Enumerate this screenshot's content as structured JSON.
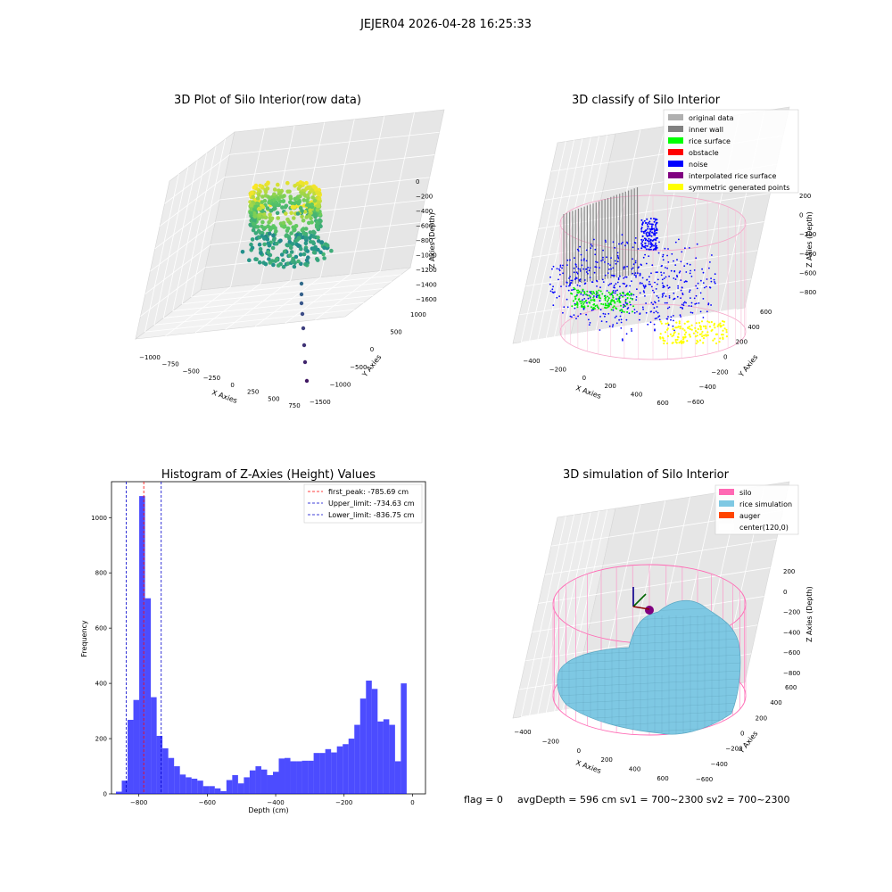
{
  "figure": {
    "title": "JEJER04 2026-04-28 16:25:33",
    "footer": {
      "flag": "flag = 0",
      "stats": "avgDepth = 596 cm  sv1 = 700~2300  sv2 = 700~2300"
    }
  },
  "chart_data": [
    {
      "id": "raw3d",
      "type": "scatter",
      "title": "3D Plot of Silo Interior(row data)",
      "xlabel": "X Axies",
      "ylabel": "Y Axies",
      "zlabel": "Z Axies (Depth)",
      "xticks": [
        "−1000",
        "−750",
        "−500",
        "−250",
        "0",
        "250",
        "500",
        "750"
      ],
      "yticks": [
        "−1500",
        "−1000",
        "−500",
        "0",
        "500",
        "1000"
      ],
      "zticks": [
        "0",
        "−200",
        "−400",
        "−600",
        "−800",
        "−1000",
        "−1200",
        "−1400",
        "−1600"
      ],
      "colormap": [
        "#440154",
        "#31688e",
        "#35b779",
        "#fde725"
      ]
    },
    {
      "id": "classify3d",
      "type": "scatter",
      "title": "3D classify of Silo Interior",
      "xlabel": "X Axies",
      "ylabel": "Y Axies",
      "zlabel": "Z Axies (Depth)",
      "xticks": [
        "−400",
        "−200",
        "0",
        "200",
        "400",
        "600"
      ],
      "yticks": [
        "−600",
        "−400",
        "−200",
        "0",
        "200",
        "400",
        "600"
      ],
      "zticks": [
        "200",
        "0",
        "−200",
        "−400",
        "−600",
        "−800"
      ],
      "legend": [
        {
          "label": "original data",
          "color": "#b0b0b0"
        },
        {
          "label": "inner wall",
          "color": "#808080"
        },
        {
          "label": "rice surface",
          "color": "#00ff00"
        },
        {
          "label": "obstacle",
          "color": "#ff0000"
        },
        {
          "label": "noise",
          "color": "#0000ff"
        },
        {
          "label": "interpolated rice surface",
          "color": "#800080"
        },
        {
          "label": "symmetric generated points",
          "color": "#ffff00"
        }
      ],
      "legend_position": "upper-right"
    },
    {
      "id": "hist",
      "type": "bar",
      "title": "Histogram of Z-Axies (Height) Values",
      "xlabel": "Depth (cm)",
      "ylabel": "Frequency",
      "xlim": [
        -880,
        38
      ],
      "ylim": [
        0,
        1130
      ],
      "xticks": [
        -800,
        -600,
        -400,
        -200,
        0
      ],
      "xtick_labels": [
        "−800",
        "−600",
        "−400",
        "−200",
        "0"
      ],
      "yticks": [
        0,
        200,
        400,
        600,
        800,
        1000
      ],
      "bin_width": 17,
      "bin_start": -867,
      "values": [
        8,
        48,
        268,
        340,
        1078,
        708,
        350,
        210,
        165,
        130,
        100,
        70,
        60,
        55,
        48,
        28,
        28,
        20,
        10,
        50,
        68,
        38,
        60,
        85,
        100,
        88,
        68,
        80,
        128,
        130,
        118,
        118,
        120,
        120,
        148,
        148,
        162,
        150,
        172,
        180,
        200,
        250,
        345,
        410,
        380,
        262,
        270,
        250,
        118,
        400
      ],
      "bar_color": "#0000ff",
      "bar_alpha": 0.7,
      "vlines": [
        {
          "label": "first_peak: -785.69 cm",
          "x": -785.69,
          "color": "#ff0000"
        },
        {
          "label": "Upper_limit: -734.63 cm",
          "x": -734.63,
          "color": "#0000cc"
        },
        {
          "label": "Lower_limit: -836.75 cm",
          "x": -836.75,
          "color": "#0000cc"
        }
      ],
      "legend_position": "upper-right"
    },
    {
      "id": "sim3d",
      "type": "area",
      "title": "3D simulation of Silo Interior",
      "xlabel": "X Axies",
      "ylabel": "Y Axies",
      "zlabel": "Z Axies (Depth)",
      "xticks": [
        "−400",
        "−200",
        "0",
        "200",
        "400",
        "600"
      ],
      "yticks": [
        "−600",
        "−400",
        "−200",
        "0",
        "200",
        "400",
        "600"
      ],
      "zticks": [
        "200",
        "0",
        "−200",
        "−400",
        "−600",
        "−800"
      ],
      "legend": [
        {
          "label": "silo",
          "color": "#ff69b4"
        },
        {
          "label": "rice simulation",
          "color": "#7ec8e3"
        },
        {
          "label": "auger",
          "color": "#ff4500"
        },
        {
          "label": "center(120,0)",
          "color": "#ffffff"
        }
      ],
      "legend_position": "upper-right"
    }
  ]
}
